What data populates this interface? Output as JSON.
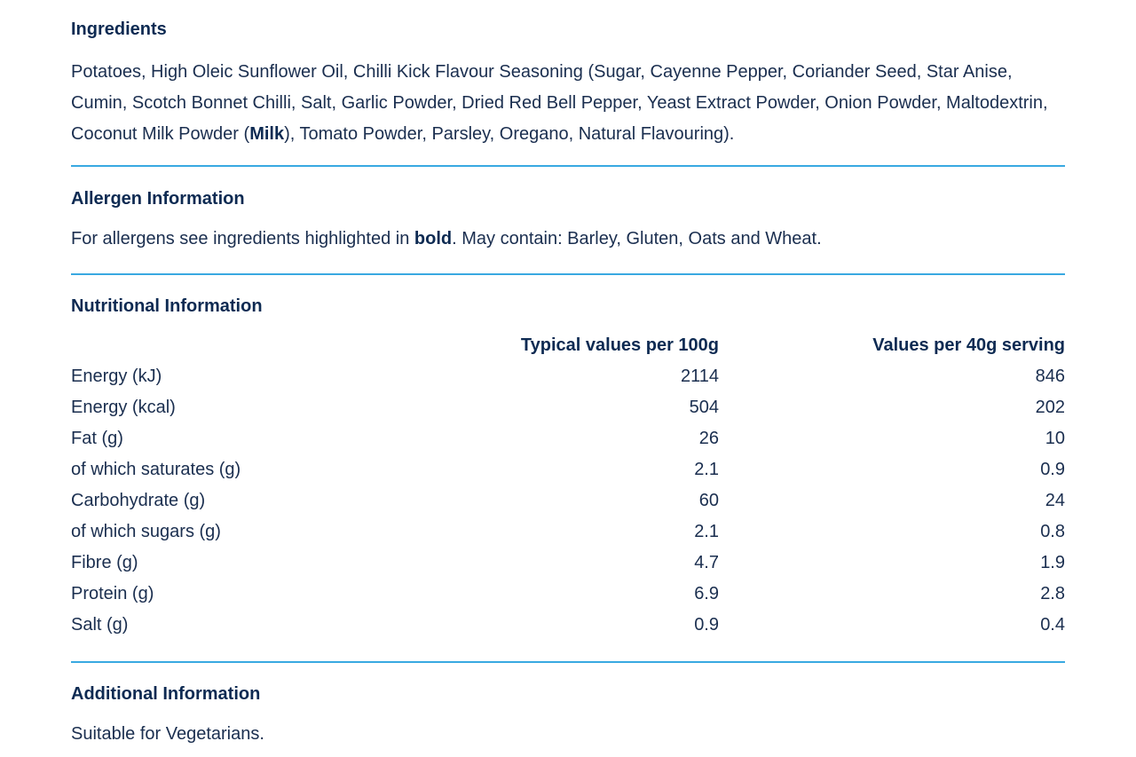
{
  "ingredients": {
    "heading": "Ingredients",
    "text_before": "Potatoes, High Oleic Sunflower Oil, Chilli Kick Flavour Seasoning (Sugar, Cayenne Pepper, Coriander Seed, Star Anise, Cumin, Scotch Bonnet Chilli, Salt, Garlic Powder, Dried Red Bell Pepper, Yeast Extract Powder, Onion Powder, Maltodextrin, Coconut Milk Powder (",
    "allergen": "Milk",
    "text_after": "), Tomato Powder, Parsley, Oregano, Natural Flavouring)."
  },
  "allergen_info": {
    "heading": "Allergen Information",
    "text_before": "For allergens see ingredients highlighted in ",
    "bold_word": "bold",
    "text_after": ". May contain: Barley, Gluten, Oats and Wheat."
  },
  "nutrition": {
    "heading": "Nutritional Information",
    "columns": {
      "per_100g": "Typical values per 100g",
      "per_serving": "Values per 40g serving"
    },
    "rows": [
      {
        "label": "Energy (kJ)",
        "per_100g": "2114",
        "per_serving": "846"
      },
      {
        "label": "Energy (kcal)",
        "per_100g": "504",
        "per_serving": "202"
      },
      {
        "label": "Fat (g)",
        "per_100g": "26",
        "per_serving": "10"
      },
      {
        "label": "of which saturates (g)",
        "per_100g": "2.1",
        "per_serving": "0.9"
      },
      {
        "label": "Carbohydrate (g)",
        "per_100g": "60",
        "per_serving": "24"
      },
      {
        "label": "of which sugars (g)",
        "per_100g": "2.1",
        "per_serving": "0.8"
      },
      {
        "label": "Fibre (g)",
        "per_100g": "4.7",
        "per_serving": "1.9"
      },
      {
        "label": "Protein (g)",
        "per_100g": "6.9",
        "per_serving": "2.8"
      },
      {
        "label": "Salt (g)",
        "per_100g": "0.9",
        "per_serving": "0.4"
      }
    ]
  },
  "additional": {
    "heading": "Additional Information",
    "text": "Suitable for Vegetarians."
  },
  "colors": {
    "heading": "#0d2a52",
    "text": "#1a2e4f",
    "divider": "#39a9e1"
  }
}
